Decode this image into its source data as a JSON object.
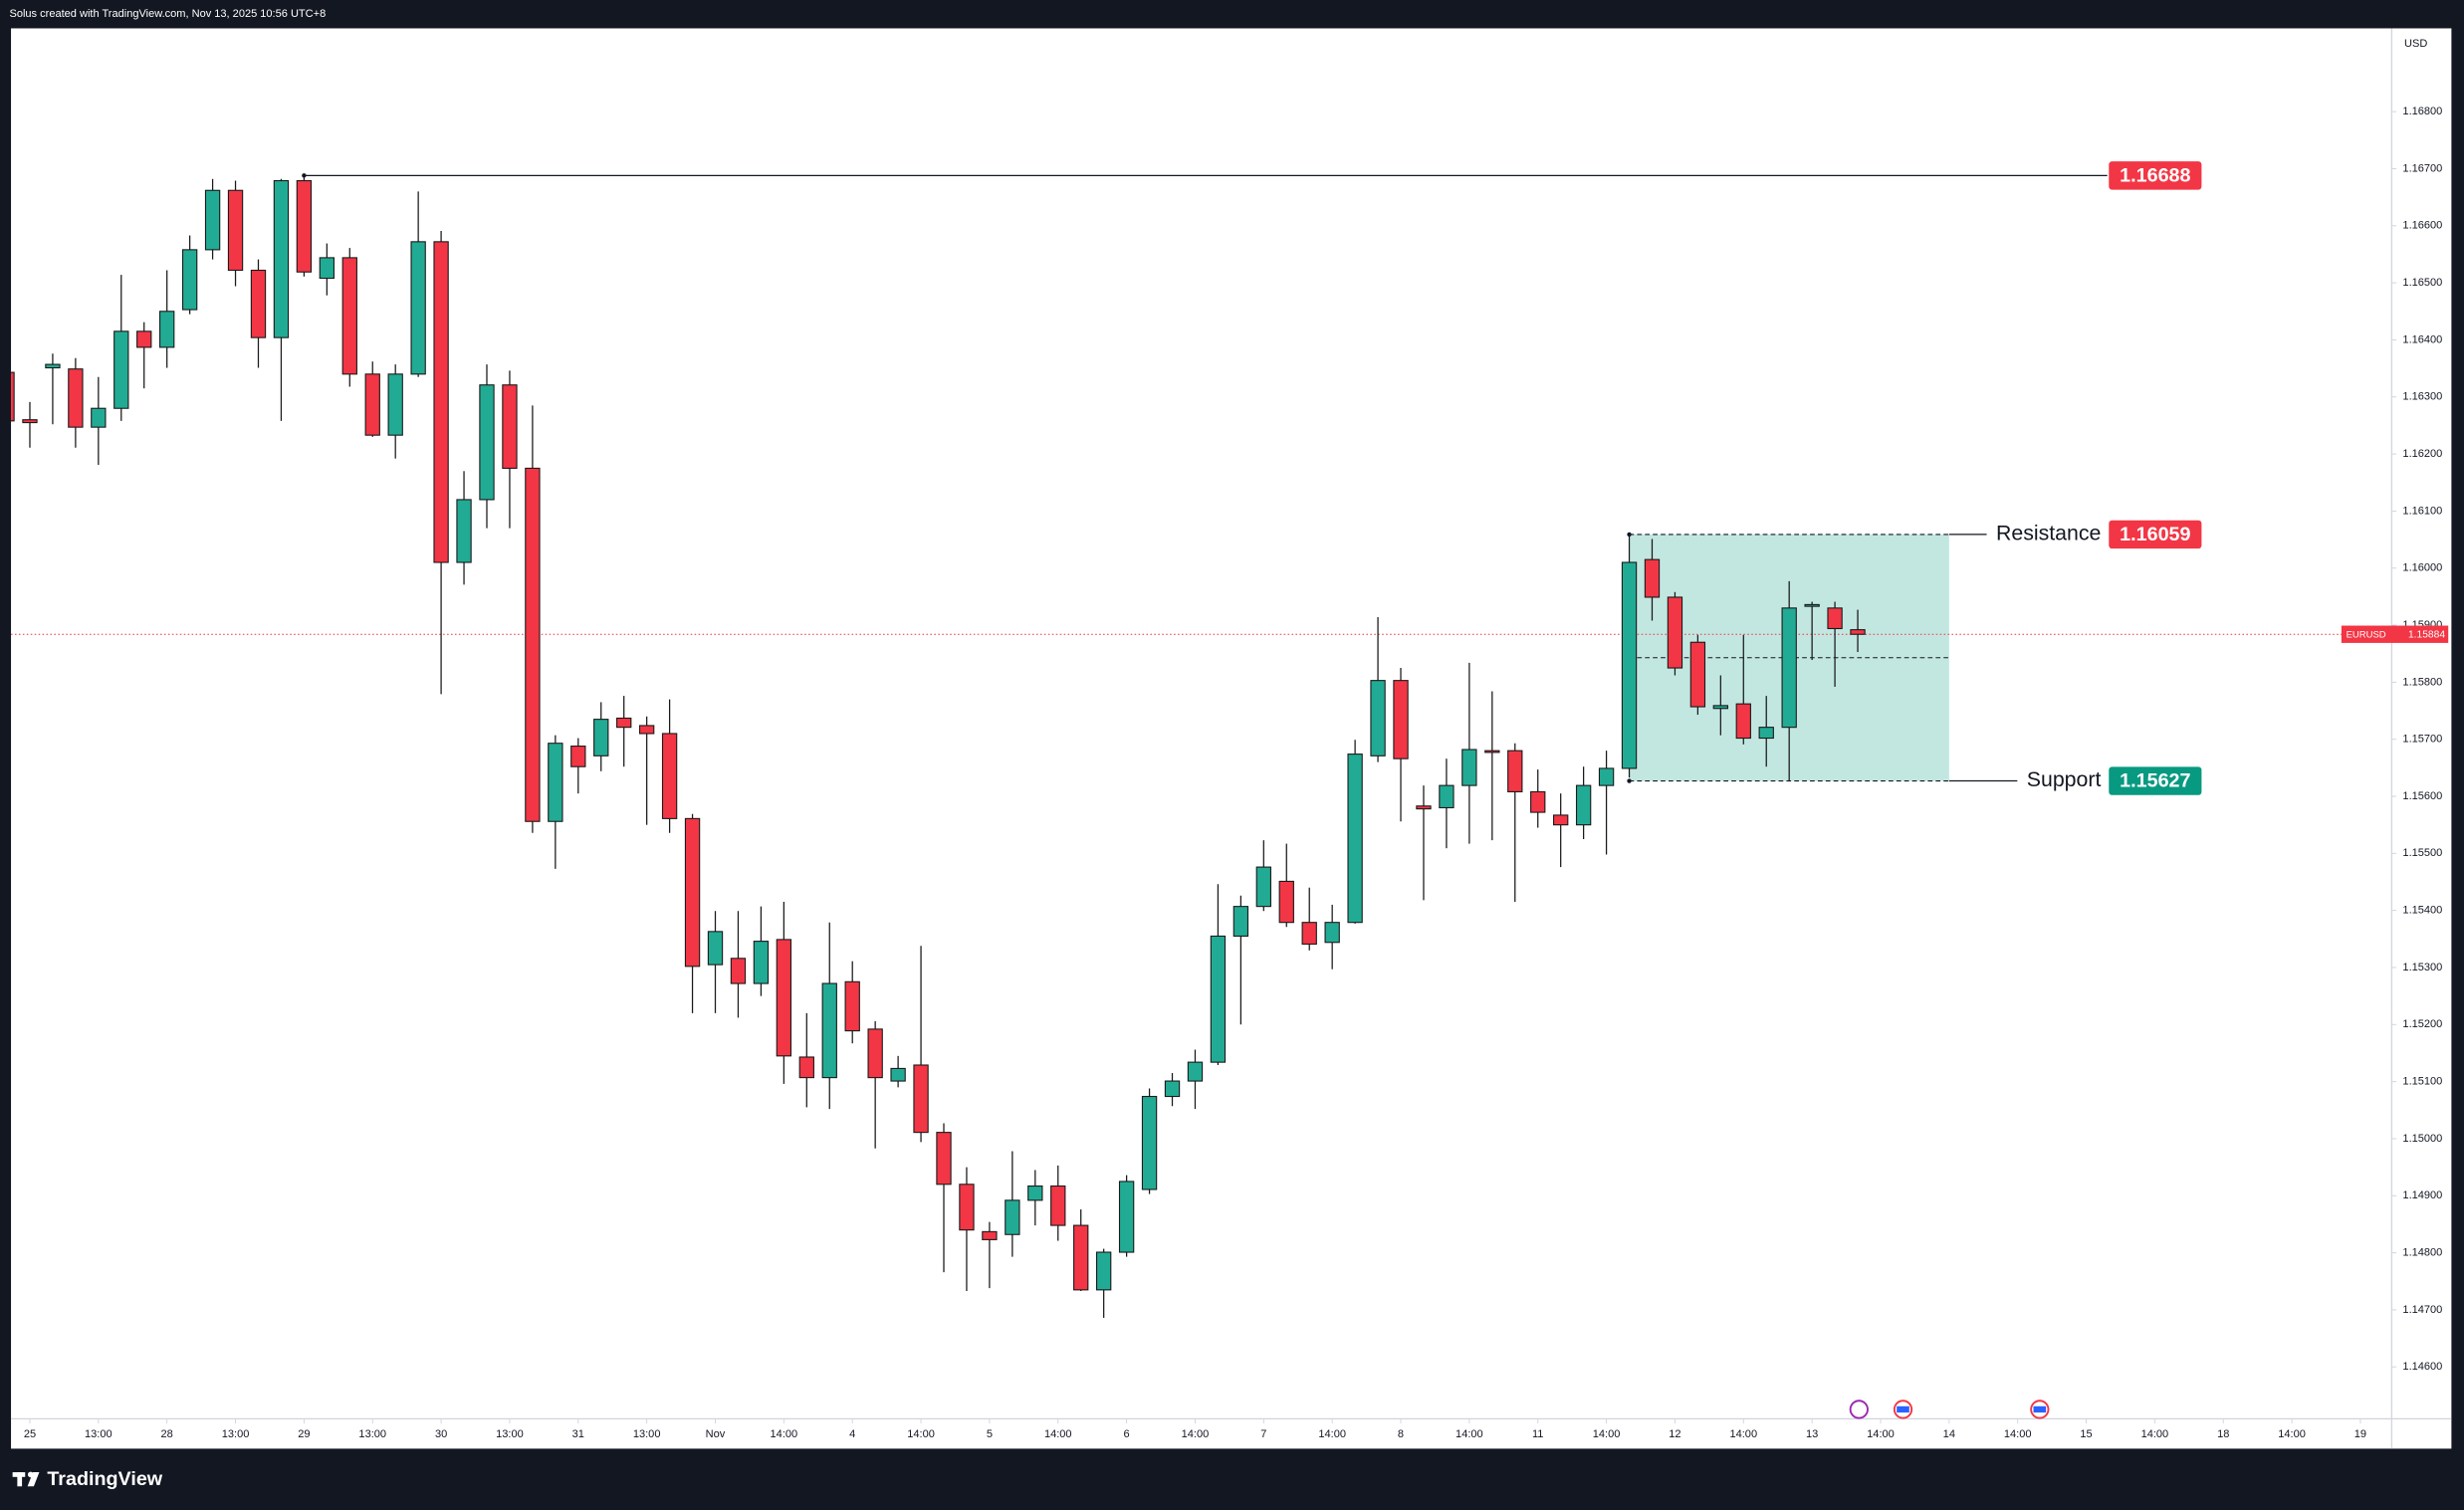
{
  "header": "Solus created with TradingView.com, Nov 13, 2025 10:56 UTC+8",
  "brand": "TradingView",
  "chart_data": {
    "type": "candlestick",
    "symbol": "EURUSD",
    "currency": "USD",
    "open": [
      1.16343,
      1.1626,
      1.16351,
      1.16349,
      1.16247,
      1.1628,
      1.16415,
      1.16387,
      1.16453,
      1.16558,
      1.16662,
      1.16522,
      1.16404,
      1.16679,
      1.16508,
      1.16544,
      1.1634,
      1.16233,
      1.1634,
      1.16572,
      1.1601,
      1.1612,
      1.16321,
      1.16175,
      1.15556,
      1.15688,
      1.15671,
      1.15737,
      1.15724,
      1.1571,
      1.15561,
      1.15305,
      1.15316,
      1.15272,
      1.15349,
      1.15143,
      1.15107,
      1.15275,
      1.15192,
      1.15101,
      1.15129,
      1.15011,
      1.1492,
      1.14837,
      1.14832,
      1.14892,
      1.14917,
      1.14848,
      1.14735,
      1.14801,
      1.14911,
      1.15074,
      1.15101,
      1.15134,
      1.15355,
      1.15407,
      1.15451,
      1.15379,
      1.15344,
      1.15379,
      1.15671,
      1.15803,
      1.15583,
      1.1558,
      1.15619,
      1.1568,
      1.1568,
      1.15608,
      1.15567,
      1.1555,
      1.15619,
      1.15649,
      1.16015,
      1.15949,
      1.1587,
      1.15754,
      1.15762,
      1.15702,
      1.15721,
      1.15933,
      1.1593,
      1.15892
    ],
    "high": [
      1.16349,
      1.16291,
      1.16376,
      1.16368,
      1.16335,
      1.16514,
      1.16431,
      1.16522,
      1.16583,
      1.16682,
      1.16679,
      1.16541,
      1.16682,
      1.16688,
      1.16569,
      1.16561,
      1.16362,
      1.16357,
      1.1666,
      1.16591,
      1.1617,
      1.16357,
      1.16346,
      1.16285,
      1.15707,
      1.15702,
      1.15765,
      1.15776,
      1.1574,
      1.1577,
      1.15569,
      1.15399,
      1.15399,
      1.15407,
      1.15415,
      1.1522,
      1.15379,
      1.15311,
      1.15206,
      1.15145,
      1.15338,
      1.15027,
      1.1495,
      1.14854,
      1.14978,
      1.14945,
      1.14953,
      1.14876,
      1.14807,
      1.14936,
      1.15088,
      1.15115,
      1.15156,
      1.15446,
      1.15426,
      1.15523,
      1.15517,
      1.1544,
      1.1541,
      1.15699,
      1.15914,
      1.15825,
      1.15619,
      1.15666,
      1.15834,
      1.15784,
      1.15693,
      1.15647,
      1.15605,
      1.15652,
      1.1568,
      1.16059,
      1.16051,
      1.15958,
      1.15883,
      1.15812,
      1.15883,
      1.15776,
      1.15977,
      1.15941,
      1.15941,
      1.15927
    ],
    "low": [
      1.16247,
      1.16211,
      1.16252,
      1.16211,
      1.16181,
      1.16258,
      1.16315,
      1.16351,
      1.16445,
      1.16541,
      1.16494,
      1.16351,
      1.16258,
      1.16511,
      1.16478,
      1.16318,
      1.1623,
      1.16192,
      1.16335,
      1.15779,
      1.15971,
      1.1607,
      1.1607,
      1.15536,
      1.15473,
      1.15605,
      1.15644,
      1.15652,
      1.1555,
      1.15536,
      1.1522,
      1.1522,
      1.15212,
      1.1525,
      1.15096,
      1.15055,
      1.15052,
      1.15167,
      1.14983,
      1.1509,
      1.14994,
      1.14766,
      1.14733,
      1.14738,
      1.14793,
      1.14848,
      1.14821,
      1.14733,
      1.14686,
      1.14793,
      1.14903,
      1.15057,
      1.15052,
      1.15129,
      1.152,
      1.15399,
      1.15371,
      1.1533,
      1.15297,
      1.15377,
      1.1566,
      1.15556,
      1.15418,
      1.15509,
      1.15517,
      1.15523,
      1.15415,
      1.15545,
      1.15476,
      1.15525,
      1.15498,
      1.15633,
      1.15908,
      1.15812,
      1.15743,
      1.15707,
      1.15691,
      1.15652,
      1.15627,
      1.15839,
      1.15792,
      1.15853
    ],
    "close": [
      1.16258,
      1.16255,
      1.16357,
      1.16247,
      1.1628,
      1.16415,
      1.16387,
      1.1645,
      1.16558,
      1.16662,
      1.16522,
      1.16404,
      1.16679,
      1.16519,
      1.16544,
      1.1634,
      1.16233,
      1.1634,
      1.16572,
      1.1601,
      1.1612,
      1.16321,
      1.16175,
      1.15556,
      1.15693,
      1.15652,
      1.15735,
      1.15721,
      1.1571,
      1.15561,
      1.15302,
      1.15363,
      1.15272,
      1.15346,
      1.15145,
      1.15107,
      1.15272,
      1.15189,
      1.15107,
      1.15123,
      1.15011,
      1.1492,
      1.1484,
      1.14823,
      1.14892,
      1.14917,
      1.14848,
      1.14735,
      1.14801,
      1.14925,
      1.15074,
      1.15101,
      1.15134,
      1.15355,
      1.15407,
      1.15476,
      1.15379,
      1.15341,
      1.15379,
      1.15674,
      1.15803,
      1.15666,
      1.15578,
      1.15619,
      1.15682,
      1.15677,
      1.15608,
      1.15572,
      1.1555,
      1.15619,
      1.15649,
      1.1601,
      1.15949,
      1.15825,
      1.15757,
      1.15759,
      1.15702,
      1.15721,
      1.1593,
      1.15936,
      1.15894,
      1.15884
    ],
    "up_color": "#22ab94",
    "down_color": "#f23645",
    "xlim": [
      0.175,
      104.37
    ],
    "xticks": [
      {
        "value": 1,
        "label": "25"
      },
      {
        "value": 4,
        "label": "13:00"
      },
      {
        "value": 7,
        "label": "28"
      },
      {
        "value": 10,
        "label": "13:00"
      },
      {
        "value": 13,
        "label": "29"
      },
      {
        "value": 16,
        "label": "13:00"
      },
      {
        "value": 19,
        "label": "30"
      },
      {
        "value": 22,
        "label": "13:00"
      },
      {
        "value": 25,
        "label": "31"
      },
      {
        "value": 28,
        "label": "13:00"
      },
      {
        "value": 31,
        "label": "Nov"
      },
      {
        "value": 34,
        "label": "14:00"
      },
      {
        "value": 37,
        "label": "4"
      },
      {
        "value": 40,
        "label": "14:00"
      },
      {
        "value": 43,
        "label": "5"
      },
      {
        "value": 46,
        "label": "14:00"
      },
      {
        "value": 49,
        "label": "6"
      },
      {
        "value": 52,
        "label": "14:00"
      },
      {
        "value": 55,
        "label": "7"
      },
      {
        "value": 58,
        "label": "14:00"
      },
      {
        "value": 61,
        "label": "8"
      },
      {
        "value": 64,
        "label": "14:00"
      },
      {
        "value": 67,
        "label": "11"
      },
      {
        "value": 70,
        "label": "14:00"
      },
      {
        "value": 73,
        "label": "12"
      },
      {
        "value": 76,
        "label": "14:00"
      },
      {
        "value": 79,
        "label": "13"
      },
      {
        "value": 82,
        "label": "14:00"
      },
      {
        "value": 85,
        "label": "14"
      },
      {
        "value": 88,
        "label": "14:00"
      },
      {
        "value": 91,
        "label": "15"
      },
      {
        "value": 94,
        "label": "14:00"
      },
      {
        "value": 97,
        "label": "18"
      },
      {
        "value": 100,
        "label": "14:00"
      },
      {
        "value": 103,
        "label": "19"
      }
    ],
    "ylim": [
      1.14509,
      1.16946
    ],
    "yticks": [
      {
        "value": 1.146,
        "label": "1.14600"
      },
      {
        "value": 1.147,
        "label": "1.14700"
      },
      {
        "value": 1.148,
        "label": "1.14800"
      },
      {
        "value": 1.149,
        "label": "1.14900"
      },
      {
        "value": 1.15,
        "label": "1.15000"
      },
      {
        "value": 1.151,
        "label": "1.15100"
      },
      {
        "value": 1.152,
        "label": "1.15200"
      },
      {
        "value": 1.153,
        "label": "1.15300"
      },
      {
        "value": 1.154,
        "label": "1.15400"
      },
      {
        "value": 1.155,
        "label": "1.15500"
      },
      {
        "value": 1.156,
        "label": "1.15600"
      },
      {
        "value": 1.157,
        "label": "1.15700"
      },
      {
        "value": 1.158,
        "label": "1.15800"
      },
      {
        "value": 1.159,
        "label": "1.15900"
      },
      {
        "value": 1.16,
        "label": "1.16000"
      },
      {
        "value": 1.161,
        "label": "1.16100"
      },
      {
        "value": 1.162,
        "label": "1.16200"
      },
      {
        "value": 1.163,
        "label": "1.16300"
      },
      {
        "value": 1.164,
        "label": "1.16400"
      },
      {
        "value": 1.165,
        "label": "1.16500"
      },
      {
        "value": 1.166,
        "label": "1.16600"
      },
      {
        "value": 1.167,
        "label": "1.16700"
      },
      {
        "value": 1.168,
        "label": "1.16800"
      }
    ],
    "grid": false,
    "levels": [
      {
        "value": 1.16688,
        "start": 13,
        "color": "#f23645"
      },
      {
        "label": "Resistance",
        "value": 1.16059,
        "start": 71,
        "color": "#f23645"
      },
      {
        "label": "Support",
        "value": 1.15627,
        "start": 71,
        "color": "#089981"
      }
    ],
    "zone": {
      "start": 71,
      "end": 85,
      "color": "#c2e7e1"
    }
  }
}
